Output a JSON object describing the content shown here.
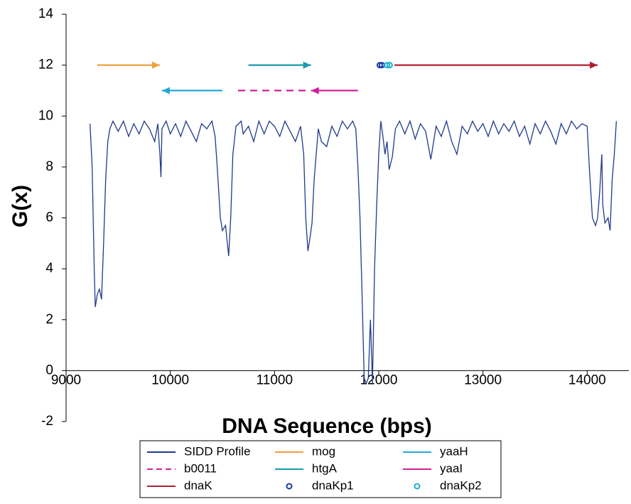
{
  "chart_data": {
    "type": "line",
    "x_label": "DNA Sequence (bps)",
    "y_label": "G(x)",
    "xlim": [
      9000,
      14400
    ],
    "xticks": [
      9000,
      10000,
      11000,
      12000,
      13000,
      14000
    ],
    "ylim": [
      -2,
      14
    ],
    "yticks": [
      -2,
      0,
      2,
      4,
      6,
      8,
      10,
      12,
      14
    ],
    "series": [
      {
        "name": "SIDD Profile",
        "color": "#1f3a8c",
        "x": [
          9230,
          9250,
          9270,
          9280,
          9300,
          9320,
          9340,
          9360,
          9380,
          9400,
          9420,
          9450,
          9500,
          9550,
          9600,
          9650,
          9700,
          9750,
          9800,
          9850,
          9880,
          9900,
          9910,
          9920,
          9960,
          10000,
          10050,
          10100,
          10150,
          10200,
          10250,
          10300,
          10350,
          10400,
          10430,
          10450,
          10480,
          10500,
          10530,
          10560,
          10580,
          10600,
          10630,
          10680,
          10700,
          10750,
          10800,
          10850,
          10900,
          10950,
          11000,
          11050,
          11100,
          11150,
          11200,
          11250,
          11280,
          11300,
          11320,
          11340,
          11360,
          11380,
          11420,
          11450,
          11500,
          11550,
          11600,
          11650,
          11700,
          11750,
          11780,
          11800,
          11820,
          11840,
          11860,
          11880,
          11900,
          11920,
          11940,
          11960,
          11980,
          12000,
          12020,
          12040,
          12060,
          12080,
          12100,
          12130,
          12160,
          12200,
          12250,
          12300,
          12350,
          12400,
          12450,
          12500,
          12550,
          12600,
          12650,
          12700,
          12750,
          12800,
          12850,
          12900,
          12950,
          13000,
          13050,
          13100,
          13150,
          13200,
          13250,
          13300,
          13350,
          13400,
          13450,
          13500,
          13550,
          13600,
          13650,
          13700,
          13750,
          13800,
          13850,
          13900,
          13950,
          14000,
          14020,
          14050,
          14080,
          14100,
          14120,
          14140,
          14150,
          14170,
          14200,
          14220,
          14240,
          14260,
          14280
        ],
        "values": [
          9.7,
          8,
          4,
          2.5,
          3,
          3.2,
          2.8,
          5,
          7.5,
          9,
          9.5,
          9.8,
          9.4,
          9.8,
          9.2,
          9.7,
          9.3,
          9.8,
          9.5,
          9.0,
          9.7,
          8.5,
          7.6,
          9.5,
          9.8,
          9.3,
          9.7,
          9.2,
          9.8,
          9.4,
          9.0,
          9.7,
          9.5,
          9.8,
          9.2,
          8.0,
          6.0,
          5.5,
          5.7,
          4.5,
          6,
          8.5,
          9.6,
          9.8,
          9.3,
          9.6,
          9.0,
          9.8,
          9.3,
          9.8,
          9.6,
          9.2,
          9.8,
          9.4,
          9.0,
          9.6,
          8.5,
          6.0,
          4.7,
          5.2,
          5.8,
          7.5,
          9.5,
          9.0,
          8.8,
          9.6,
          9.2,
          9.8,
          9.5,
          9.8,
          9.5,
          8.0,
          6.0,
          3.0,
          -0.3,
          -0.5,
          -0.3,
          2.0,
          -0.5,
          4,
          6.5,
          8.5,
          9.8,
          9.2,
          8.5,
          9.0,
          7.9,
          8.4,
          9.5,
          9.8,
          9.3,
          9.8,
          9.1,
          9.7,
          9.4,
          8.3,
          9.6,
          9.2,
          9.8,
          9.0,
          8.5,
          9.6,
          9.3,
          9.8,
          9.4,
          9.7,
          9.2,
          9.8,
          9.3,
          9.7,
          9.4,
          9.8,
          9.2,
          9.6,
          8.9,
          9.7,
          9.3,
          9.8,
          9.4,
          8.9,
          9.7,
          9.3,
          9.8,
          9.5,
          9.7,
          9.6,
          8.0,
          6.0,
          5.7,
          6.0,
          7.0,
          8.5,
          6.5,
          5.8,
          6.0,
          5.5,
          7.5,
          8.5,
          9.8
        ]
      },
      {
        "name": "mog",
        "color": "#f0a040",
        "x": [
          9300,
          9900
        ],
        "values": [
          12,
          12
        ]
      },
      {
        "name": "yaaH",
        "color": "#22a9d8",
        "x": [
          10500,
          9920
        ],
        "values": [
          11,
          11
        ]
      },
      {
        "name": "b0011",
        "color": "#d0209a",
        "dashed": true,
        "x": [
          10650,
          11330
        ],
        "values": [
          11,
          11
        ]
      },
      {
        "name": "htgA",
        "color": "#1a9aaa",
        "x": [
          10750,
          11350
        ],
        "values": [
          12,
          12
        ]
      },
      {
        "name": "yaaI",
        "color": "#d0209a",
        "x": [
          11800,
          11350
        ],
        "values": [
          11,
          11
        ]
      },
      {
        "name": "dnaK",
        "color": "#b02030",
        "x": [
          12150,
          14100
        ],
        "values": [
          12,
          12
        ]
      },
      {
        "name": "dnaKp1",
        "color": "#1a3aa0",
        "marker": "circle",
        "x": [
          12010,
          12030
        ],
        "values": [
          12,
          12
        ]
      },
      {
        "name": "dnaKp2",
        "color": "#1ab0d0",
        "marker": "circle",
        "x": [
          12080,
          12105
        ],
        "values": [
          12,
          12
        ]
      }
    ]
  }
}
